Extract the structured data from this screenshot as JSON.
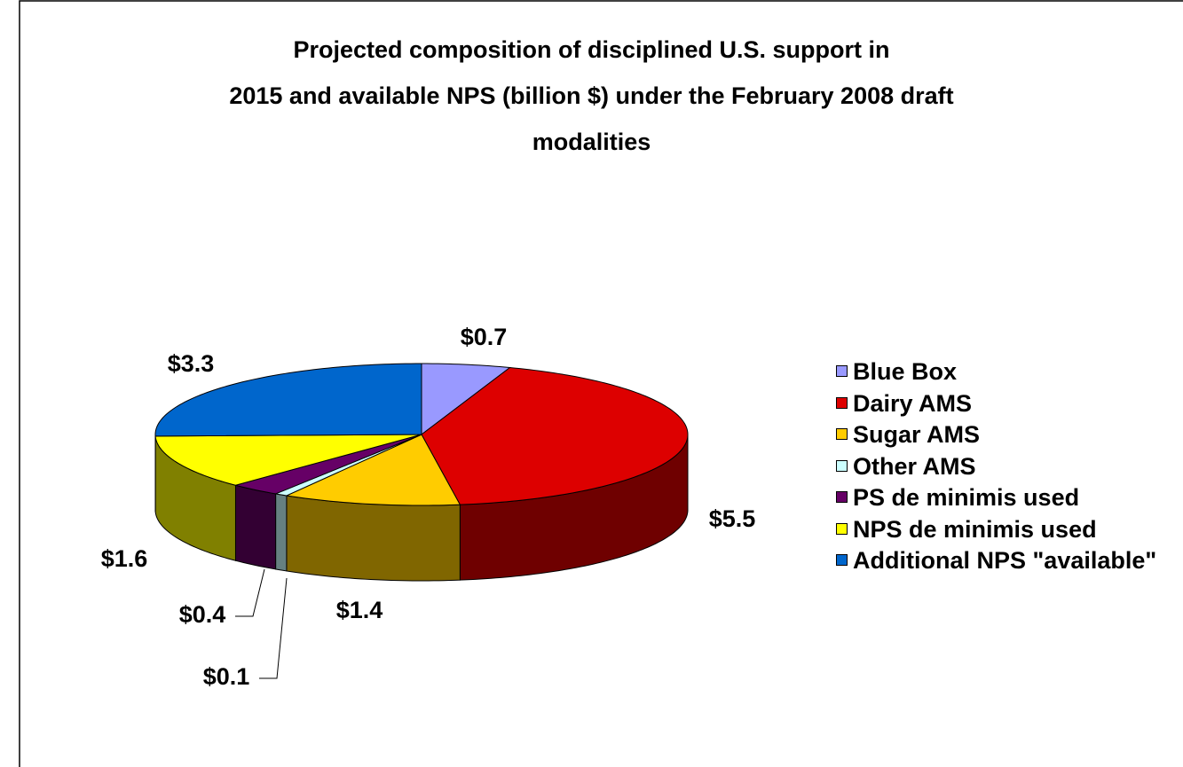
{
  "chart_data": {
    "type": "pie3d",
    "title": "Projected composition of disciplined U.S. support in\n2015 and available NPS (billion $) under the February 2008 draft\nmodalities",
    "categories": [
      "Blue Box",
      "Dairy AMS",
      "Sugar AMS",
      "Other AMS",
      "PS de minimis used",
      "NPS de minimis used",
      "Additional NPS \"available\""
    ],
    "values": [
      0.7,
      5.5,
      1.4,
      0.1,
      0.4,
      1.6,
      3.3
    ],
    "value_labels": [
      "$0.7",
      "$5.5",
      "$1.4",
      "$0.1",
      "$0.4",
      "$1.6",
      "$3.3"
    ],
    "colors": [
      "#9999ff",
      "#dd0000",
      "#ffcc00",
      "#ccffff",
      "#660066",
      "#ffff00",
      "#0066cc"
    ],
    "legend": "right"
  }
}
